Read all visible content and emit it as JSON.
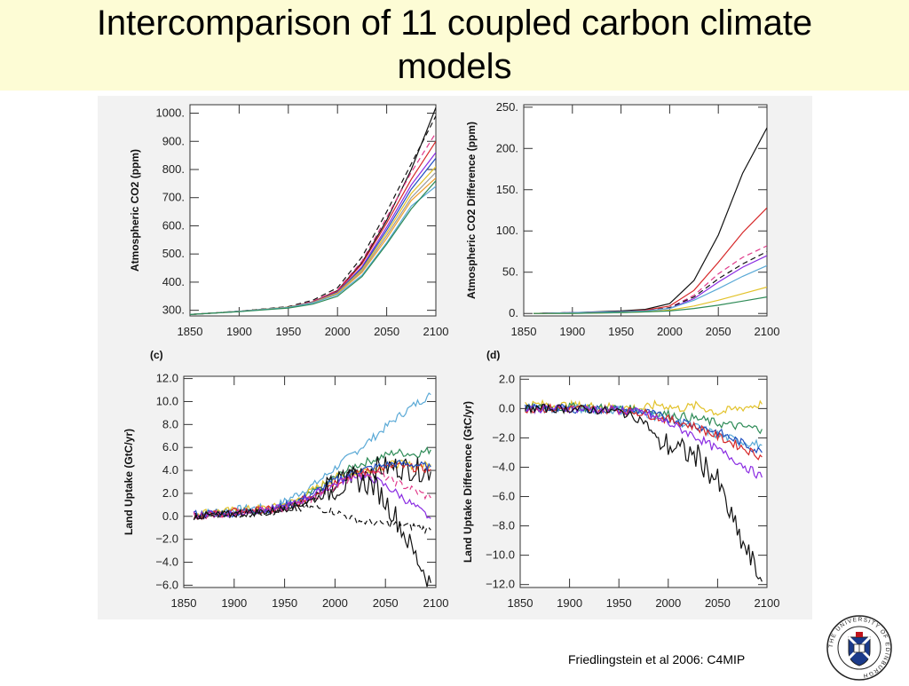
{
  "slide": {
    "title_line1": "Intercomparison of 11 coupled carbon climate",
    "title_line2": "models",
    "citation": "Friedlingstein et al 2006: C4MIP",
    "logo_text": "THE UNIVERSITY OF EDINBURGH"
  },
  "series_colors": [
    "#111111",
    "#e03a8a",
    "#5aa9d6",
    "#8a2be2",
    "#e2c22a",
    "#2e8b57",
    "#d62728",
    "#1f4fbf",
    "#f0a030",
    "#999999",
    "#444444"
  ],
  "chart_data": [
    {
      "id": "co2",
      "type": "line",
      "panel_label": "",
      "ylabel": "Atmospheric CO2 (ppm)",
      "xlabel": "",
      "xlim": [
        1850,
        2100
      ],
      "ylim": [
        280,
        1030
      ],
      "xticks": [
        "1850",
        "1900",
        "1950",
        "2000",
        "2050",
        "2100"
      ],
      "yticks": [
        {
          "v": 300,
          "label": "300."
        },
        {
          "v": 400,
          "label": "400."
        },
        {
          "v": 500,
          "label": "500."
        },
        {
          "v": 600,
          "label": "600."
        },
        {
          "v": 700,
          "label": "700."
        },
        {
          "v": 800,
          "label": "800."
        },
        {
          "v": 900,
          "label": "900."
        },
        {
          "v": 1000,
          "label": "1000."
        }
      ],
      "x": [
        1850,
        1900,
        1950,
        1975,
        2000,
        2025,
        2050,
        2075,
        2100
      ],
      "series": [
        {
          "color": "#111111",
          "dash": false,
          "values": [
            285,
            296,
            311,
            330,
            370,
            470,
            620,
            800,
            1020
          ]
        },
        {
          "color": "#111111",
          "dash": true,
          "values": [
            285,
            297,
            313,
            336,
            380,
            490,
            650,
            820,
            990
          ]
        },
        {
          "color": "#e03a8a",
          "dash": true,
          "values": [
            285,
            296,
            311,
            332,
            372,
            475,
            630,
            790,
            930
          ]
        },
        {
          "color": "#d62728",
          "dash": false,
          "values": [
            285,
            296,
            311,
            330,
            368,
            465,
            610,
            765,
            900
          ]
        },
        {
          "color": "#8a2be2",
          "dash": false,
          "values": [
            285,
            296,
            311,
            329,
            365,
            455,
            595,
            745,
            860
          ]
        },
        {
          "color": "#1f4fbf",
          "dash": false,
          "values": [
            285,
            296,
            311,
            329,
            364,
            450,
            585,
            730,
            840
          ]
        },
        {
          "color": "#e2c22a",
          "dash": false,
          "values": [
            285,
            296,
            311,
            328,
            362,
            445,
            575,
            715,
            810
          ]
        },
        {
          "color": "#999999",
          "dash": false,
          "values": [
            285,
            296,
            311,
            328,
            361,
            440,
            565,
            700,
            790
          ]
        },
        {
          "color": "#f0a030",
          "dash": false,
          "values": [
            285,
            296,
            311,
            327,
            360,
            435,
            555,
            690,
            770
          ]
        },
        {
          "color": "#5aa9d6",
          "dash": false,
          "values": [
            285,
            296,
            310,
            326,
            356,
            425,
            540,
            670,
            740
          ]
        },
        {
          "color": "#2e8b57",
          "dash": false,
          "values": [
            285,
            295,
            308,
            322,
            350,
            420,
            535,
            660,
            760
          ]
        }
      ]
    },
    {
      "id": "co2diff",
      "type": "line",
      "panel_label": "",
      "ylabel": "Atmospheric CO2 Difference (ppm)",
      "xlabel": "",
      "xlim": [
        1850,
        2100
      ],
      "ylim": [
        -3,
        253
      ],
      "xticks": [
        "1850",
        "1900",
        "1950",
        "2000",
        "2050",
        "2100"
      ],
      "yticks": [
        {
          "v": 0,
          "label": "0."
        },
        {
          "v": 50,
          "label": "50."
        },
        {
          "v": 100,
          "label": "100."
        },
        {
          "v": 150,
          "label": "150."
        },
        {
          "v": 200,
          "label": "200."
        },
        {
          "v": 250,
          "label": "250."
        }
      ],
      "x": [
        1860,
        1900,
        1950,
        1975,
        2000,
        2025,
        2050,
        2075,
        2100
      ],
      "series": [
        {
          "color": "#111111",
          "dash": false,
          "values": [
            0,
            1,
            3,
            5,
            12,
            40,
            95,
            170,
            225
          ]
        },
        {
          "color": "#d62728",
          "dash": false,
          "values": [
            0,
            1,
            2,
            4,
            9,
            28,
            62,
            98,
            128
          ]
        },
        {
          "color": "#e03a8a",
          "dash": true,
          "values": [
            0,
            1,
            2,
            3,
            7,
            22,
            48,
            68,
            82
          ]
        },
        {
          "color": "#111111",
          "dash": true,
          "values": [
            0,
            1,
            2,
            3,
            7,
            20,
            42,
            60,
            75
          ]
        },
        {
          "color": "#8a2be2",
          "dash": false,
          "values": [
            0,
            1,
            2,
            3,
            6,
            18,
            38,
            56,
            70
          ]
        },
        {
          "color": "#5aa9d6",
          "dash": false,
          "values": [
            0,
            1,
            2,
            3,
            6,
            16,
            30,
            45,
            58
          ]
        },
        {
          "color": "#e2c22a",
          "dash": false,
          "values": [
            0,
            0,
            1,
            2,
            4,
            9,
            16,
            24,
            32
          ]
        },
        {
          "color": "#2e8b57",
          "dash": false,
          "values": [
            0,
            0,
            1,
            2,
            3,
            6,
            10,
            15,
            20
          ]
        }
      ]
    },
    {
      "id": "landuptake",
      "type": "line",
      "panel_label": "(c)",
      "ylabel": "Land Uptake (GtC/yr)",
      "xlabel": "",
      "xlim": [
        1850,
        2100
      ],
      "ylim": [
        -6.2,
        12.2
      ],
      "xticks": [
        "1850",
        "1900",
        "1950",
        "2000",
        "2050",
        "2100"
      ],
      "yticks": [
        {
          "v": -6,
          "label": "−6.0"
        },
        {
          "v": -4,
          "label": "−4.0"
        },
        {
          "v": -2,
          "label": "−2.0"
        },
        {
          "v": 0,
          "label": "0.0"
        },
        {
          "v": 2,
          "label": "2.0"
        },
        {
          "v": 4,
          "label": "4.0"
        },
        {
          "v": 6,
          "label": "6.0"
        },
        {
          "v": 8,
          "label": "8.0"
        },
        {
          "v": 10,
          "label": "10.0"
        },
        {
          "v": 12,
          "label": "12.0"
        }
      ],
      "x": [
        1860,
        1900,
        1940,
        1960,
        1980,
        2000,
        2020,
        2040,
        2060,
        2080,
        2095
      ],
      "series": [
        {
          "color": "#5aa9d6",
          "dash": false,
          "values": [
            0.2,
            0.6,
            0.8,
            1.8,
            2.8,
            4.2,
            5.6,
            7.0,
            8.5,
            9.8,
            10.6
          ]
        },
        {
          "color": "#2e8b57",
          "dash": false,
          "values": [
            0.1,
            0.4,
            0.6,
            1.0,
            2.2,
            3.4,
            4.4,
            5.0,
            5.6,
            5.4,
            5.8
          ]
        },
        {
          "color": "#e2c22a",
          "dash": false,
          "values": [
            0.3,
            0.5,
            0.8,
            1.3,
            2.4,
            3.4,
            3.8,
            4.2,
            4.6,
            4.4,
            4.5
          ]
        },
        {
          "color": "#111111",
          "dash": false,
          "values": [
            0.1,
            0.3,
            0.5,
            1.0,
            1.8,
            2.8,
            3.8,
            4.2,
            4.3,
            4.1,
            3.9
          ]
        },
        {
          "color": "#d62728",
          "dash": false,
          "values": [
            0.0,
            0.4,
            0.6,
            1.0,
            2.0,
            3.0,
            3.6,
            4.1,
            4.4,
            4.2,
            4.1
          ]
        },
        {
          "color": "#1f4fbf",
          "dash": false,
          "values": [
            0.2,
            0.3,
            0.7,
            1.2,
            2.1,
            3.1,
            3.9,
            4.3,
            4.6,
            4.5,
            4.3
          ]
        },
        {
          "color": "#8a2be2",
          "dash": false,
          "values": [
            0.1,
            0.3,
            0.6,
            1.1,
            1.9,
            2.8,
            3.6,
            3.2,
            2.1,
            0.8,
            -0.2
          ]
        },
        {
          "color": "#e03a8a",
          "dash": true,
          "values": [
            0.0,
            0.3,
            0.5,
            0.9,
            1.6,
            2.6,
            3.6,
            3.8,
            3.0,
            2.2,
            1.6
          ]
        },
        {
          "color": "#111111",
          "dash": true,
          "values": [
            0.0,
            0.2,
            0.4,
            0.6,
            0.8,
            0.4,
            -0.3,
            -0.6,
            -0.7,
            -0.9,
            -1.2
          ]
        },
        {
          "color": "#111111",
          "dash": false,
          "values": [
            0.0,
            0.2,
            0.5,
            0.9,
            1.5,
            2.4,
            3.2,
            2.6,
            0.0,
            -3.5,
            -5.8
          ]
        }
      ]
    },
    {
      "id": "landdiff",
      "type": "line",
      "panel_label": "(d)",
      "ylabel": "Land Uptake Difference (GtC/yr)",
      "xlabel": "",
      "xlim": [
        1850,
        2100
      ],
      "ylim": [
        -12.2,
        2.2
      ],
      "xticks": [
        "1850",
        "1900",
        "1950",
        "2000",
        "2050",
        "2100"
      ],
      "yticks": [
        {
          "v": -12,
          "label": "−12.0"
        },
        {
          "v": -10,
          "label": "−10.0"
        },
        {
          "v": -8,
          "label": "−8.0"
        },
        {
          "v": -6,
          "label": "−6.0"
        },
        {
          "v": -4,
          "label": "−4.0"
        },
        {
          "v": -2,
          "label": "−2.0"
        },
        {
          "v": 0,
          "label": "0.0"
        },
        {
          "v": 2,
          "label": "2.0"
        }
      ],
      "x": [
        1855,
        1900,
        1950,
        1975,
        1990,
        2010,
        2030,
        2050,
        2070,
        2095
      ],
      "series": [
        {
          "color": "#e2c22a",
          "dash": false,
          "values": [
            0.3,
            0.2,
            0.1,
            0.0,
            0.3,
            0.0,
            0.2,
            -0.3,
            0.0,
            0.3
          ]
        },
        {
          "color": "#2e8b57",
          "dash": false,
          "values": [
            0.0,
            0.1,
            0.0,
            -0.1,
            -0.3,
            -0.5,
            -0.7,
            -1.0,
            -1.2,
            -1.4
          ]
        },
        {
          "color": "#5aa9d6",
          "dash": false,
          "values": [
            0.0,
            0.0,
            -0.1,
            -0.3,
            -0.6,
            -0.9,
            -1.3,
            -1.8,
            -2.2,
            -2.5
          ]
        },
        {
          "color": "#1f4fbf",
          "dash": false,
          "values": [
            0.0,
            0.0,
            -0.1,
            -0.2,
            -0.5,
            -0.8,
            -1.2,
            -1.6,
            -2.2,
            -3.0
          ]
        },
        {
          "color": "#d62728",
          "dash": false,
          "values": [
            0.0,
            0.0,
            -0.1,
            -0.3,
            -0.6,
            -0.9,
            -1.3,
            -1.9,
            -2.5,
            -3.3
          ]
        },
        {
          "color": "#8a2be2",
          "dash": false,
          "values": [
            0.0,
            0.0,
            -0.1,
            -0.3,
            -0.7,
            -1.3,
            -2.0,
            -2.8,
            -3.6,
            -4.7
          ]
        },
        {
          "color": "#111111",
          "dash": false,
          "values": [
            0.0,
            0.0,
            -0.2,
            -0.8,
            -2.2,
            -2.8,
            -3.3,
            -5.0,
            -8.5,
            -11.8
          ]
        }
      ]
    }
  ]
}
